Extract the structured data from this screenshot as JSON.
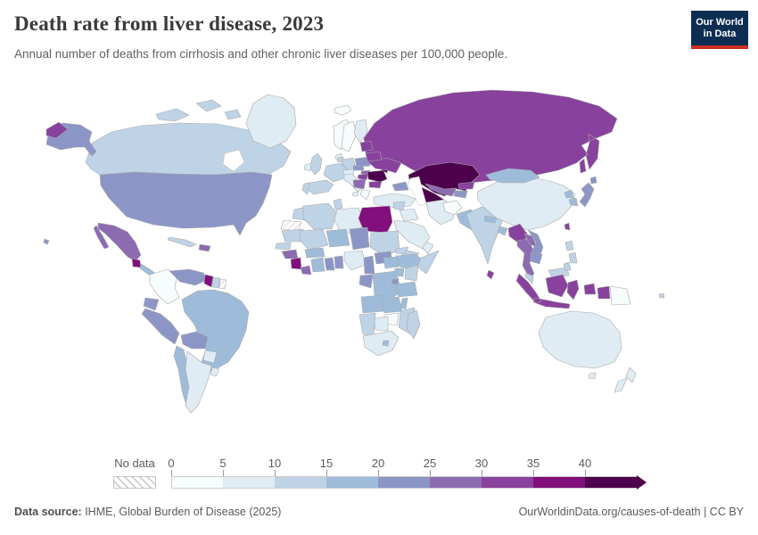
{
  "header": {
    "title": "Death rate from liver disease, 2023",
    "subtitle": "Annual number of deaths from cirrhosis and other chronic liver diseases per 100,000 people.",
    "logo": {
      "line1": "Our World",
      "line2": "in Data",
      "bg_color": "#0d2e52",
      "accent_color": "#cf2e22"
    }
  },
  "legend": {
    "no_data_label": "No data",
    "ticks": [
      "0",
      "5",
      "10",
      "15",
      "20",
      "25",
      "30",
      "35",
      "40"
    ],
    "arrow": "right-arrow-end"
  },
  "footer": {
    "source_label": "Data source:",
    "source_text": " IHME, Global Burden of Disease (2025)",
    "right_text": "OurWorldinData.org/causes-of-death | CC BY"
  },
  "chart_data": {
    "type": "heatmap",
    "subtype": "choropleth-world-map",
    "title": "Death rate from liver disease, 2023",
    "subtitle": "Annual number of deaths from cirrhosis and other chronic liver diseases per 100,000 people.",
    "unit": "deaths per 100,000 people",
    "year": "2023",
    "legend_ticks": [
      0,
      5,
      10,
      15,
      20,
      25,
      30,
      35,
      40
    ],
    "bins": [
      {
        "range": "0-5",
        "color": "#f7fcfd"
      },
      {
        "range": "5-10",
        "color": "#e0ecf4"
      },
      {
        "range": "10-15",
        "color": "#bfd3e6"
      },
      {
        "range": "15-20",
        "color": "#9ebcda"
      },
      {
        "range": "20-25",
        "color": "#8c96c6"
      },
      {
        "range": "25-30",
        "color": "#8c6bb1"
      },
      {
        "range": "30-35",
        "color": "#88419d"
      },
      {
        "range": "35-40",
        "color": "#810f7c"
      },
      {
        "range": "40+",
        "color": "#4d004b"
      }
    ],
    "no_data": {
      "label": "No data",
      "pattern": "diagonal-hatch"
    },
    "countries": [
      {
        "id": "russia",
        "name": "Russia",
        "bin": 6
      },
      {
        "id": "canada",
        "name": "Canada",
        "bin": 2
      },
      {
        "id": "greenland",
        "name": "Greenland",
        "bin": 1
      },
      {
        "id": "alaska",
        "name": "Alaska (United States)",
        "bin": 4
      },
      {
        "id": "usa",
        "name": "United States",
        "bin": 4
      },
      {
        "id": "hawaii",
        "name": "Hawaii (United States)",
        "bin": 4
      },
      {
        "id": "mexico",
        "name": "Mexico",
        "bin": 5
      },
      {
        "id": "guatemala",
        "name": "Guatemala",
        "bin": 7
      },
      {
        "id": "central-america",
        "name": "Central America",
        "bin": 3
      },
      {
        "id": "cuba",
        "name": "Cuba",
        "bin": 2
      },
      {
        "id": "hispaniola",
        "name": "Hispaniola",
        "bin": 5
      },
      {
        "id": "colombia",
        "name": "Colombia",
        "bin": 0
      },
      {
        "id": "venezuela",
        "name": "Venezuela",
        "bin": 4
      },
      {
        "id": "guyana",
        "name": "Guyana",
        "bin": 7
      },
      {
        "id": "suriname",
        "name": "Suriname",
        "bin": 2
      },
      {
        "id": "french-guiana",
        "name": "French Guiana",
        "bin": null
      },
      {
        "id": "ecuador",
        "name": "Ecuador",
        "bin": 4
      },
      {
        "id": "peru",
        "name": "Peru",
        "bin": 4
      },
      {
        "id": "brazil",
        "name": "Brazil",
        "bin": 3
      },
      {
        "id": "bolivia",
        "name": "Bolivia",
        "bin": 4
      },
      {
        "id": "paraguay",
        "name": "Paraguay",
        "bin": 1
      },
      {
        "id": "chile",
        "name": "Chile",
        "bin": 3
      },
      {
        "id": "argentina",
        "name": "Argentina",
        "bin": 1
      },
      {
        "id": "uruguay",
        "name": "Uruguay",
        "bin": 1
      },
      {
        "id": "iceland",
        "name": "Iceland",
        "bin": 0
      },
      {
        "id": "uk",
        "name": "United Kingdom",
        "bin": 2
      },
      {
        "id": "ireland",
        "name": "Ireland",
        "bin": 1
      },
      {
        "id": "norway",
        "name": "Norway",
        "bin": 0
      },
      {
        "id": "sweden",
        "name": "Sweden",
        "bin": 0
      },
      {
        "id": "finland",
        "name": "Finland",
        "bin": 1
      },
      {
        "id": "denmark",
        "name": "Denmark",
        "bin": 1
      },
      {
        "id": "germany",
        "name": "Germany",
        "bin": 2
      },
      {
        "id": "benelux",
        "name": "Benelux",
        "bin": 2
      },
      {
        "id": "france",
        "name": "France",
        "bin": 2
      },
      {
        "id": "spain",
        "name": "Spain",
        "bin": 2
      },
      {
        "id": "portugal",
        "name": "Portugal",
        "bin": 2
      },
      {
        "id": "italy",
        "name": "Italy",
        "bin": 1
      },
      {
        "id": "alpine",
        "name": "Alpine states",
        "bin": 1
      },
      {
        "id": "czechia",
        "name": "Czechia",
        "bin": 4
      },
      {
        "id": "poland",
        "name": "Poland",
        "bin": 4
      },
      {
        "id": "slovakia",
        "name": "Slovakia",
        "bin": 5
      },
      {
        "id": "hungary",
        "name": "Hungary",
        "bin": 6
      },
      {
        "id": "balkans",
        "name": "Balkans",
        "bin": 5
      },
      {
        "id": "greece",
        "name": "Greece",
        "bin": 0
      },
      {
        "id": "bulgaria",
        "name": "Bulgaria",
        "bin": 6
      },
      {
        "id": "romania",
        "name": "Romania",
        "bin": 8
      },
      {
        "id": "moldova",
        "name": "Moldova",
        "bin": 8
      },
      {
        "id": "ukraine",
        "name": "Ukraine",
        "bin": 6
      },
      {
        "id": "belarus",
        "name": "Belarus",
        "bin": 6
      },
      {
        "id": "baltics",
        "name": "Baltic states",
        "bin": 6
      },
      {
        "id": "kazakhstan",
        "name": "Kazakhstan",
        "bin": 8
      },
      {
        "id": "uzbekistan",
        "name": "Uzbekistan",
        "bin": 5
      },
      {
        "id": "turkmenistan",
        "name": "Turkmenistan",
        "bin": 8
      },
      {
        "id": "kyrgyzstan",
        "name": "Kyrgyzstan",
        "bin": 6
      },
      {
        "id": "tajikistan",
        "name": "Tajikistan",
        "bin": 4
      },
      {
        "id": "caucasus",
        "name": "Caucasus",
        "bin": 4
      },
      {
        "id": "turkey",
        "name": "Turkey",
        "bin": 1
      },
      {
        "id": "syria",
        "name": "Syria",
        "bin": 2
      },
      {
        "id": "iraq",
        "name": "Iraq",
        "bin": 1
      },
      {
        "id": "iran",
        "name": "Iran",
        "bin": 1
      },
      {
        "id": "afghanistan",
        "name": "Afghanistan",
        "bin": 0
      },
      {
        "id": "pakistan",
        "name": "Pakistan",
        "bin": 3
      },
      {
        "id": "saudi-arabia",
        "name": "Saudi Arabia",
        "bin": 1
      },
      {
        "id": "yemen",
        "name": "Yemen",
        "bin": 2
      },
      {
        "id": "oman",
        "name": "Oman",
        "bin": 1
      },
      {
        "id": "india",
        "name": "India",
        "bin": 2
      },
      {
        "id": "nepal",
        "name": "Nepal",
        "bin": 3
      },
      {
        "id": "bangladesh",
        "name": "Bangladesh",
        "bin": 3
      },
      {
        "id": "sri-lanka",
        "name": "Sri Lanka",
        "bin": 6
      },
      {
        "id": "china",
        "name": "China",
        "bin": 1
      },
      {
        "id": "mongolia",
        "name": "Mongolia",
        "bin": 3
      },
      {
        "id": "north-korea",
        "name": "North Korea",
        "bin": 3
      },
      {
        "id": "south-korea",
        "name": "South Korea",
        "bin": 3
      },
      {
        "id": "japan",
        "name": "Japan",
        "bin": 4
      },
      {
        "id": "taiwan",
        "name": "Taiwan",
        "bin": 6
      },
      {
        "id": "myanmar",
        "name": "Myanmar",
        "bin": 6
      },
      {
        "id": "thailand",
        "name": "Thailand",
        "bin": 5
      },
      {
        "id": "laos",
        "name": "Laos",
        "bin": 5
      },
      {
        "id": "vietnam",
        "name": "Vietnam",
        "bin": 4
      },
      {
        "id": "cambodia",
        "name": "Cambodia",
        "bin": 4
      },
      {
        "id": "malaysia",
        "name": "Malaysia",
        "bin": 2
      },
      {
        "id": "philippines",
        "name": "Philippines",
        "bin": 2
      },
      {
        "id": "indonesia",
        "name": "Indonesia",
        "bin": 6
      },
      {
        "id": "papua-new-guinea",
        "name": "Papua New Guinea",
        "bin": 0
      },
      {
        "id": "australia",
        "name": "Australia",
        "bin": 1
      },
      {
        "id": "new-zealand",
        "name": "New Zealand",
        "bin": 1
      },
      {
        "id": "fiji",
        "name": "Fiji",
        "bin": 2
      },
      {
        "id": "morocco",
        "name": "Morocco",
        "bin": 2
      },
      {
        "id": "western-sahara",
        "name": "Western Sahara",
        "bin": null
      },
      {
        "id": "algeria",
        "name": "Algeria",
        "bin": 2
      },
      {
        "id": "tunisia",
        "name": "Tunisia",
        "bin": 2
      },
      {
        "id": "libya",
        "name": "Libya",
        "bin": 1
      },
      {
        "id": "egypt",
        "name": "Egypt",
        "bin": 7
      },
      {
        "id": "mauritania",
        "name": "Mauritania",
        "bin": 2
      },
      {
        "id": "mali",
        "name": "Mali",
        "bin": 2
      },
      {
        "id": "niger",
        "name": "Niger",
        "bin": 3
      },
      {
        "id": "chad",
        "name": "Chad",
        "bin": 4
      },
      {
        "id": "sudan",
        "name": "Sudan",
        "bin": 2
      },
      {
        "id": "eritrea",
        "name": "Eritrea",
        "bin": 2
      },
      {
        "id": "ethiopia",
        "name": "Ethiopia",
        "bin": 3
      },
      {
        "id": "somalia",
        "name": "Somalia",
        "bin": 2
      },
      {
        "id": "senegal",
        "name": "Senegal",
        "bin": 2
      },
      {
        "id": "guinea",
        "name": "Guinea",
        "bin": 5
      },
      {
        "id": "sierra-leone",
        "name": "Sierra Leone",
        "bin": 7
      },
      {
        "id": "liberia",
        "name": "Liberia",
        "bin": 5
      },
      {
        "id": "cote-divoire",
        "name": "Cote d'Ivoire",
        "bin": 3
      },
      {
        "id": "ghana",
        "name": "Ghana",
        "bin": 4
      },
      {
        "id": "togo-benin",
        "name": "Togo & Benin",
        "bin": 4
      },
      {
        "id": "burkina-faso",
        "name": "Burkina Faso",
        "bin": 3
      },
      {
        "id": "nigeria",
        "name": "Nigeria",
        "bin": 1
      },
      {
        "id": "cameroon",
        "name": "Cameroon",
        "bin": 4
      },
      {
        "id": "central-african-republic",
        "name": "Central African Republic",
        "bin": 4
      },
      {
        "id": "south-sudan",
        "name": "South Sudan",
        "bin": 3
      },
      {
        "id": "gabon-congo",
        "name": "Gabon & Congo",
        "bin": 4
      },
      {
        "id": "drc",
        "name": "Democratic Republic of Congo",
        "bin": 3
      },
      {
        "id": "uganda",
        "name": "Uganda",
        "bin": 3
      },
      {
        "id": "kenya",
        "name": "Kenya",
        "bin": 2
      },
      {
        "id": "rwanda-burundi",
        "name": "Rwanda & Burundi",
        "bin": 4
      },
      {
        "id": "tanzania",
        "name": "Tanzania",
        "bin": 3
      },
      {
        "id": "angola",
        "name": "Angola",
        "bin": 3
      },
      {
        "id": "zambia",
        "name": "Zambia",
        "bin": 3
      },
      {
        "id": "malawi",
        "name": "Malawi",
        "bin": 3
      },
      {
        "id": "mozambique",
        "name": "Mozambique",
        "bin": 2
      },
      {
        "id": "zimbabwe",
        "name": "Zimbabwe",
        "bin": 0
      },
      {
        "id": "botswana",
        "name": "Botswana",
        "bin": 1
      },
      {
        "id": "namibia",
        "name": "Namibia",
        "bin": 2
      },
      {
        "id": "south-africa",
        "name": "South Africa",
        "bin": 1
      },
      {
        "id": "lesotho",
        "name": "Lesotho",
        "bin": 3
      },
      {
        "id": "madagascar",
        "name": "Madagascar",
        "bin": 2
      }
    ]
  }
}
